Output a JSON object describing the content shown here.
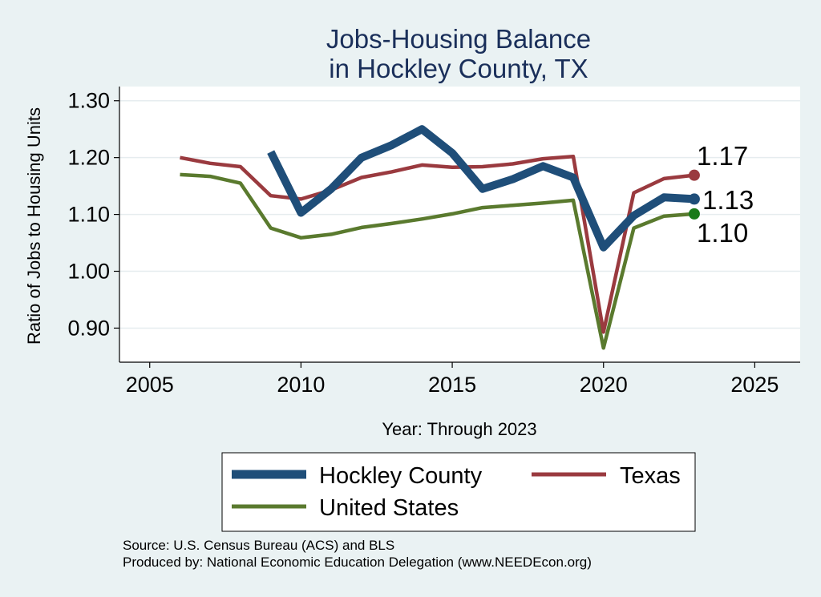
{
  "chart_data": {
    "type": "line",
    "title_lines": [
      "Jobs-Housing Balance",
      "in Hockley County, TX"
    ],
    "xlabel": "Year: Through 2023",
    "ylabel": "Ratio of Jobs to Housing Units",
    "xlim": [
      2004,
      2026.5
    ],
    "ylim": [
      0.84,
      1.325
    ],
    "xticks": [
      {
        "value": 2005,
        "label": "2005"
      },
      {
        "value": 2010,
        "label": "2010"
      },
      {
        "value": 2015,
        "label": "2015"
      },
      {
        "value": 2020,
        "label": "2020"
      },
      {
        "value": 2025,
        "label": "2025"
      }
    ],
    "yticks": [
      {
        "value": 0.9,
        "label": "0.90"
      },
      {
        "value": 1.0,
        "label": "1.00"
      },
      {
        "value": 1.1,
        "label": "1.10"
      },
      {
        "value": 1.2,
        "label": "1.20"
      },
      {
        "value": 1.3,
        "label": "1.30"
      }
    ],
    "grid": true,
    "series": [
      {
        "id": "hockley",
        "name": "Hockley County",
        "color": "#1f4e79",
        "weight": "thick",
        "x": [
          2009,
          2010,
          2011,
          2012,
          2013,
          2014,
          2015,
          2016,
          2017,
          2018,
          2019,
          2020,
          2021,
          2022,
          2023
        ],
        "y": [
          1.21,
          1.103,
          1.145,
          1.2,
          1.222,
          1.25,
          1.208,
          1.145,
          1.162,
          1.185,
          1.165,
          1.042,
          1.098,
          1.13,
          1.127
        ],
        "end_label": "1.13",
        "marker_color": "#1f4e79"
      },
      {
        "id": "texas",
        "name": "Texas",
        "color": "#9a3a3f",
        "weight": "normal",
        "x": [
          2006,
          2007,
          2008,
          2009,
          2010,
          2011,
          2012,
          2013,
          2014,
          2015,
          2016,
          2017,
          2018,
          2019,
          2020,
          2021,
          2022,
          2023
        ],
        "y": [
          1.2,
          1.19,
          1.184,
          1.133,
          1.127,
          1.143,
          1.165,
          1.175,
          1.187,
          1.183,
          1.184,
          1.189,
          1.198,
          1.202,
          0.893,
          1.138,
          1.163,
          1.169
        ],
        "end_label": "1.17",
        "marker_color": "#9a3a3f"
      },
      {
        "id": "us",
        "name": "United States",
        "color": "#5a7a2e",
        "weight": "normal",
        "x": [
          2006,
          2007,
          2008,
          2009,
          2010,
          2011,
          2012,
          2013,
          2014,
          2015,
          2016,
          2017,
          2018,
          2019,
          2020,
          2021,
          2022,
          2023
        ],
        "y": [
          1.17,
          1.167,
          1.155,
          1.076,
          1.059,
          1.065,
          1.077,
          1.084,
          1.092,
          1.101,
          1.112,
          1.116,
          1.12,
          1.125,
          0.865,
          1.076,
          1.097,
          1.101
        ],
        "end_label": "1.10",
        "marker_color": "#1a7a1a"
      }
    ],
    "legend_position": "bottom"
  },
  "footer": {
    "source_line": "Source: U.S. Census Bureau (ACS) and BLS",
    "produced_line": "Produced by: National Economic Education Delegation (www.NEEDEcon.org)"
  }
}
